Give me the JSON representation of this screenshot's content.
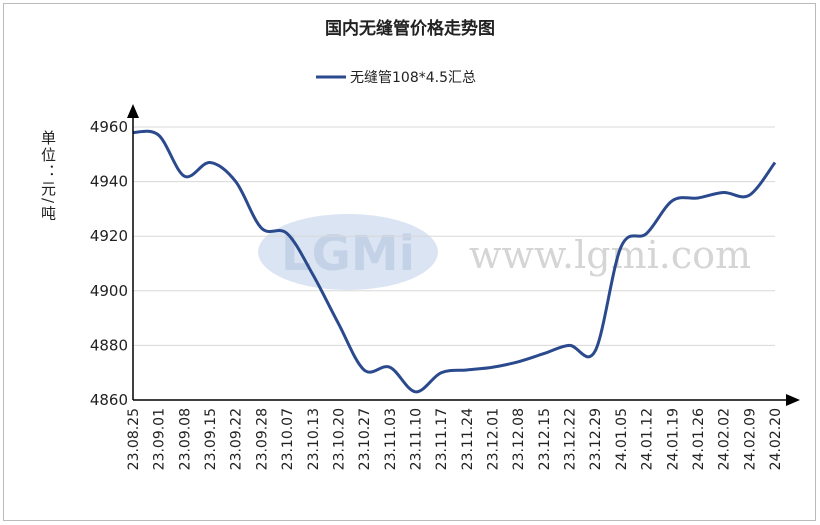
{
  "chart_data": {
    "type": "line",
    "title": "国内无缝管价格走势图",
    "y_label": "单位：元/吨",
    "watermark": {
      "logo": "LGMi",
      "url": "www.lgmi.com"
    },
    "categories": [
      "23.08.25",
      "23.09.01",
      "23.09.08",
      "23.09.15",
      "23.09.22",
      "23.09.28",
      "23.10.07",
      "23.10.13",
      "23.10.20",
      "23.10.27",
      "23.11.03",
      "23.11.10",
      "23.11.17",
      "23.11.24",
      "23.12.01",
      "23.12.08",
      "23.12.15",
      "23.12.22",
      "23.12.29",
      "24.01.05",
      "24.01.12",
      "24.01.19",
      "24.01.26",
      "24.02.02",
      "24.02.09",
      "24.02.20"
    ],
    "series": [
      {
        "name": "无缝管108*4.5汇总",
        "color": "#2b4a8e",
        "values": [
          4958,
          4957,
          4942,
          4947,
          4940,
          4923,
          4921,
          4906,
          4888,
          4871,
          4872,
          4863,
          4870,
          4871,
          4872,
          4874,
          4877,
          4880,
          4878,
          4916,
          4921,
          4933,
          4934,
          4936,
          4935,
          4947
        ]
      }
    ],
    "ylim": [
      4860,
      4960
    ],
    "yticks": [
      4860,
      4880,
      4900,
      4920,
      4940,
      4960
    ],
    "grid": true
  }
}
